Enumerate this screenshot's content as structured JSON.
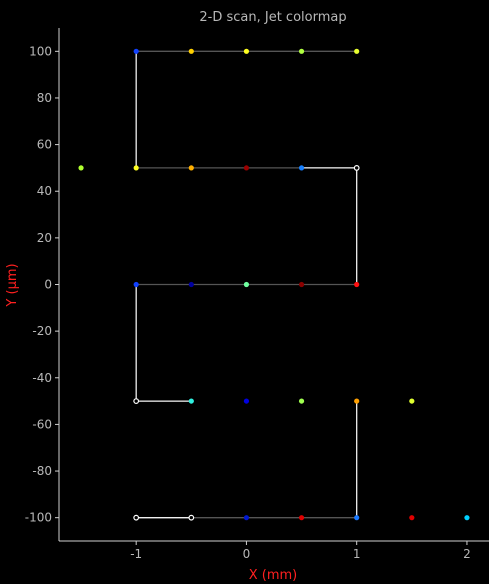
{
  "chart_data": {
    "type": "scatter",
    "title": "2-D scan, Jet colormap",
    "xlabel": "X (mm)",
    "ylabel": "Y (µm)",
    "xlim": [
      -1.7,
      2.2
    ],
    "ylim": [
      -110,
      110
    ],
    "x_ticks": [
      -1,
      0,
      1,
      2
    ],
    "y_ticks": [
      -100,
      -80,
      -60,
      -40,
      -20,
      0,
      20,
      40,
      60,
      80,
      100
    ],
    "axis_color": "#d0d0d0",
    "tick_label_color": "#b8b8b8",
    "axis_label_color": "#ff2020",
    "background": "#000000",
    "grid": false,
    "scan_path": [
      {
        "x": -0.5,
        "y": -50
      },
      {
        "x": -1.0,
        "y": -50
      },
      {
        "x": -1.0,
        "y": 0
      },
      {
        "x": 1.0,
        "y": 0
      },
      {
        "x": 1.0,
        "y": 50
      },
      {
        "x": -1.0,
        "y": 50
      },
      {
        "x": -1.0,
        "y": 100
      },
      {
        "x": 1.0,
        "y": 100
      }
    ],
    "scan_path_2": [
      {
        "x": 1.0,
        "y": -50
      },
      {
        "x": 1.0,
        "y": -100
      },
      {
        "x": -1.0,
        "y": -100
      }
    ],
    "path_colors": {
      "highlight": "#f0f0f0",
      "dim": "#555555"
    },
    "points": [
      {
        "x": -1.0,
        "y": 100,
        "color": "#1040ff"
      },
      {
        "x": -0.5,
        "y": 100,
        "color": "#ffd000"
      },
      {
        "x": 0.0,
        "y": 100,
        "color": "#ffff20"
      },
      {
        "x": 0.5,
        "y": 100,
        "color": "#b0ff40"
      },
      {
        "x": 1.0,
        "y": 100,
        "color": "#e8ff30"
      },
      {
        "x": -1.5,
        "y": 50,
        "color": "#b0ff30"
      },
      {
        "x": -1.0,
        "y": 50,
        "color": "#ffff20"
      },
      {
        "x": -0.5,
        "y": 50,
        "color": "#ffb000"
      },
      {
        "x": 0.0,
        "y": 50,
        "color": "#9a0000"
      },
      {
        "x": 0.5,
        "y": 50,
        "color": "#1880ff"
      },
      {
        "x": 1.0,
        "y": 50,
        "color": "#ffffff"
      },
      {
        "x": -1.0,
        "y": 0,
        "color": "#1040ff"
      },
      {
        "x": -0.5,
        "y": 0,
        "color": "#0000a0"
      },
      {
        "x": 0.0,
        "y": 0,
        "color": "#70ffa0"
      },
      {
        "x": 0.5,
        "y": 0,
        "color": "#8a0000"
      },
      {
        "x": 1.0,
        "y": 0,
        "color": "#ff1010"
      },
      {
        "x": -1.0,
        "y": -50,
        "color": "#ffffff"
      },
      {
        "x": -0.5,
        "y": -50,
        "color": "#30f0e0"
      },
      {
        "x": 0.0,
        "y": -50,
        "color": "#0000e0"
      },
      {
        "x": 0.5,
        "y": -50,
        "color": "#a0ff50"
      },
      {
        "x": 1.0,
        "y": -50,
        "color": "#ffa000"
      },
      {
        "x": 1.5,
        "y": -50,
        "color": "#e0ff30"
      },
      {
        "x": -1.0,
        "y": -100,
        "color": "#ffffff"
      },
      {
        "x": -0.5,
        "y": -100,
        "color": "#ffffff"
      },
      {
        "x": 0.0,
        "y": -100,
        "color": "#0018d0"
      },
      {
        "x": 0.5,
        "y": -100,
        "color": "#e00000"
      },
      {
        "x": 1.0,
        "y": -100,
        "color": "#1878ff"
      },
      {
        "x": 1.5,
        "y": -100,
        "color": "#e00000"
      },
      {
        "x": 2.0,
        "y": -100,
        "color": "#00d0ff"
      }
    ]
  }
}
